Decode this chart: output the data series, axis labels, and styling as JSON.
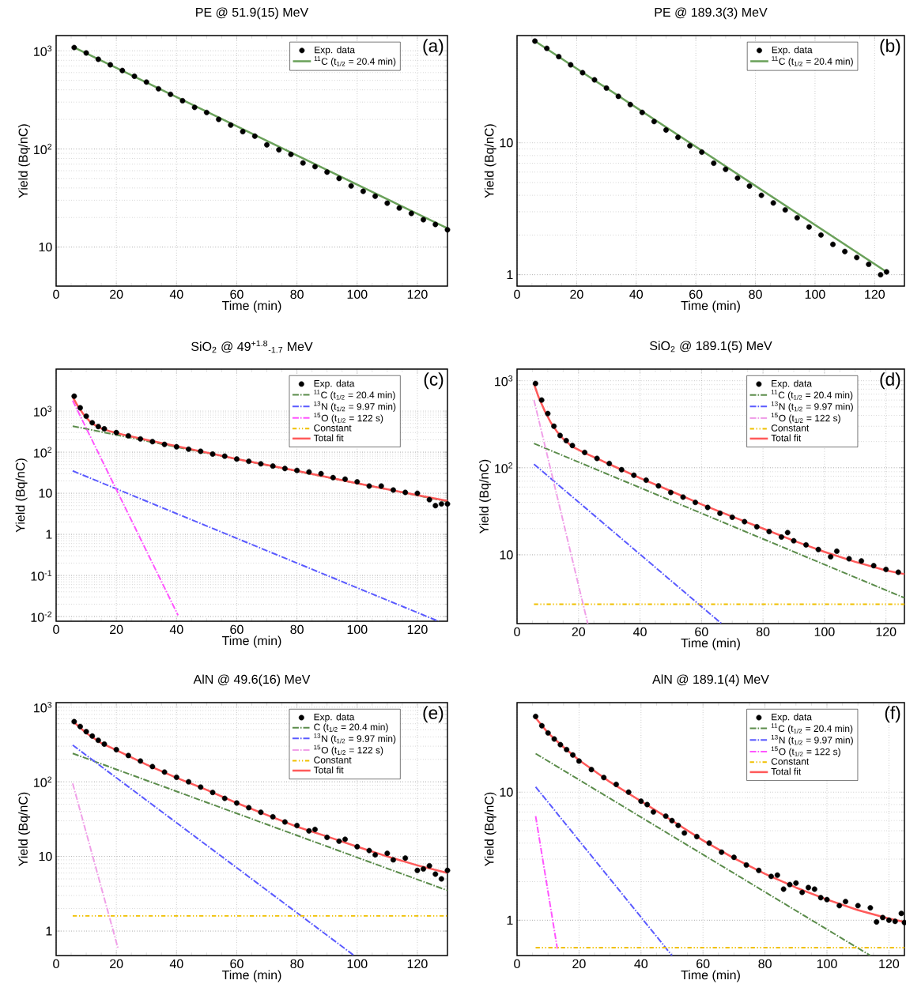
{
  "chart_data": [
    {
      "type": "scatter",
      "title": "PE @ 51.9(15) MeV",
      "xlabel": "Time (min)",
      "ylabel": "Yield (Bq/nC)",
      "xlim": [
        0,
        130
      ],
      "xticks": [
        0,
        20,
        40,
        60,
        80,
        100,
        120
      ],
      "ylim": [
        4,
        1430
      ],
      "yticks": [
        10,
        {
          "value": 100,
          "label": "10$^{2}$"
        },
        {
          "value": 1000,
          "label": "10$^{3}$"
        }
      ],
      "log": "y",
      "grid": true,
      "legend": "top right",
      "annotations": [
        "(a)"
      ],
      "series": [
        {
          "name": "Exp. data",
          "type": "scatter",
          "color": "#000000",
          "x": [
            6,
            10,
            14,
            18,
            22,
            26,
            30,
            34,
            38,
            42,
            46,
            50,
            54,
            58,
            62,
            66,
            70,
            74,
            78,
            82,
            86,
            90,
            94,
            98,
            102,
            106,
            110,
            114,
            118,
            122,
            126,
            130
          ],
          "values": [
            1080,
            950,
            820,
            720,
            630,
            550,
            480,
            410,
            360,
            310,
            265,
            235,
            200,
            175,
            150,
            135,
            110,
            98,
            88,
            72,
            66,
            58,
            50,
            42,
            37,
            33,
            28,
            25,
            22,
            19,
            17,
            15
          ]
        },
        {
          "name": "$^{11}$C (t$_{1/2}$ = 20.4 min)",
          "type": "line",
          "line_style": "solid",
          "color": "#6aa15a",
          "x": [
            5.5,
            130
          ],
          "values": [
            1100,
            15.5
          ]
        }
      ]
    },
    {
      "type": "scatter",
      "title": "PE @ 189.3(3) MeV",
      "xlabel": "Time (min)",
      "ylabel": "Yield (Bq/nC)",
      "xlim": [
        0,
        130
      ],
      "xticks": [
        0,
        20,
        40,
        60,
        80,
        100,
        120
      ],
      "ylim": [
        0.82,
        65
      ],
      "yticks": [
        1,
        10
      ],
      "log": "y",
      "grid": true,
      "legend": "top right",
      "annotations": [
        "(b)"
      ],
      "series": [
        {
          "name": "Exp. data",
          "type": "scatter",
          "color": "#000000",
          "x": [
            6,
            10,
            14,
            18,
            22,
            26,
            30,
            34,
            38,
            42,
            46,
            50,
            54,
            58,
            62,
            66,
            70,
            74,
            78,
            82,
            86,
            90,
            94,
            98,
            102,
            106,
            110,
            114,
            118,
            122,
            124
          ],
          "values": [
            59,
            52,
            45,
            39,
            34,
            30,
            26,
            22.5,
            19.5,
            17,
            14.5,
            12.5,
            11,
            9.5,
            8.5,
            7,
            6.3,
            5.4,
            4.7,
            4.0,
            3.5,
            3.1,
            2.7,
            2.3,
            2.0,
            1.7,
            1.5,
            1.35,
            1.2,
            1.0,
            1.05
          ]
        },
        {
          "name": "$^{11}$C (t$_{1/2}$ = 20.4 min)",
          "type": "line",
          "line_style": "solid",
          "color": "#6aa15a",
          "x": [
            5.5,
            124
          ],
          "values": [
            60,
            1.05
          ]
        }
      ]
    },
    {
      "type": "scatter",
      "title": "SiO$_{2}$ @ 49$^{+1.8}$$_{-1.7}$ MeV",
      "xlabel": "Time (min)",
      "ylabel": "Yield (Bq/nC)",
      "xlim": [
        0,
        130
      ],
      "xticks": [
        0,
        20,
        40,
        60,
        80,
        100,
        120
      ],
      "ylim": [
        0.0077,
        10500
      ],
      "yticks": [
        {
          "value": 0.01,
          "label": "10$^{-2}$"
        },
        {
          "value": 0.1,
          "label": "10$^{-1}$"
        },
        1,
        10,
        {
          "value": 100,
          "label": "10$^{2}$"
        },
        {
          "value": 1000,
          "label": "10$^{3}$"
        }
      ],
      "log": "y",
      "grid": true,
      "legend": "top right",
      "annotations": [
        "(c)"
      ],
      "series": [
        {
          "name": "Exp. data",
          "type": "scatter",
          "color": "#000000",
          "x": [
            6,
            8,
            10,
            12,
            14,
            16,
            20,
            24,
            28,
            32,
            36,
            40,
            44,
            48,
            52,
            56,
            60,
            64,
            68,
            72,
            76,
            80,
            84,
            88,
            92,
            96,
            100,
            104,
            108,
            112,
            116,
            120,
            124,
            126,
            128,
            130
          ],
          "values": [
            2300,
            1200,
            750,
            520,
            420,
            370,
            300,
            250,
            210,
            180,
            155,
            135,
            118,
            105,
            90,
            80,
            68,
            60,
            52,
            46,
            40,
            36,
            33,
            30,
            24,
            22,
            19,
            15,
            15,
            12,
            10.5,
            10,
            7,
            5,
            5.5,
            5.5
          ]
        },
        {
          "name": "$^{11}$C (t$_{1/2}$ = 20.4 min)",
          "type": "line",
          "line_style": "dashed",
          "color": "#5b8c4b",
          "x": [
            5.5,
            130
          ],
          "values": [
            430,
            6.3
          ]
        },
        {
          "name": "$^{13}$N (t$_{1/2}$ = 9.97 min)",
          "type": "line",
          "line_style": "dashed",
          "color": "#5a5aff",
          "x": [
            5.5,
            127
          ],
          "values": [
            35,
            0.0077
          ]
        },
        {
          "name": "$^{15}$O (t$_{1/2}$ = 122 s)",
          "type": "line",
          "line_style": "dashed",
          "color": "#ff55ff",
          "x": [
            5.5,
            40.5
          ],
          "values": [
            1800,
            0.0107
          ]
        },
        {
          "name": "Constant",
          "type": "line",
          "line_style": "dotted",
          "color": "#f0c000"
        },
        {
          "name": "Total fit",
          "type": "line",
          "line_style": "solid",
          "color": "#ff5a5a",
          "x": [
            5.5,
            7,
            9,
            11,
            13,
            15,
            18,
            22,
            30,
            40,
            60,
            80,
            100,
            120,
            130
          ],
          "values": [
            2200,
            1400,
            850,
            580,
            450,
            380,
            320,
            270,
            200,
            140,
            68,
            35,
            17.5,
            9,
            6.5
          ]
        }
      ]
    },
    {
      "type": "scatter",
      "title": "SiO$_{2}$ @ 189.1(5) MeV",
      "xlabel": "Time (min)",
      "ylabel": "Yield (Bq/nC)",
      "xlim": [
        0,
        126
      ],
      "xticks": [
        0,
        20,
        40,
        60,
        80,
        100,
        120
      ],
      "ylim": [
        1.62,
        1360
      ],
      "yticks": [
        10,
        {
          "value": 100,
          "label": "10$^{2}$"
        },
        {
          "value": 1000,
          "label": "10$^{3}$"
        }
      ],
      "log": "y",
      "grid": true,
      "legend": "top right",
      "annotations": [
        "(d)"
      ],
      "series": [
        {
          "name": "Exp. data",
          "type": "scatter",
          "color": "#000000",
          "x": [
            6,
            8,
            10,
            12,
            14,
            16,
            18,
            22,
            26,
            30,
            34,
            38,
            42,
            46,
            50,
            54,
            58,
            62,
            66,
            70,
            74,
            78,
            82,
            86,
            88,
            90,
            94,
            98,
            102,
            104,
            108,
            112,
            116,
            120,
            124
          ],
          "values": [
            930,
            600,
            420,
            300,
            235,
            205,
            180,
            150,
            128,
            112,
            95,
            82,
            72,
            62,
            52,
            46,
            40,
            35,
            30,
            27,
            24,
            21,
            18.5,
            16,
            18,
            14.5,
            13,
            11.5,
            9.5,
            11,
            9,
            8.5,
            7.5,
            6.8,
            6.3
          ]
        },
        {
          "name": "$^{11}$C (t$_{1/2}$ = 20.4 min)",
          "type": "line",
          "line_style": "dashed",
          "color": "#5b8c4b",
          "x": [
            5.5,
            126
          ],
          "values": [
            190,
            3.2
          ]
        },
        {
          "name": "$^{13}$N (t$_{1/2}$ = 9.97 min)",
          "type": "line",
          "line_style": "dashed",
          "color": "#5a5aff",
          "x": [
            5.5,
            66.5
          ],
          "values": [
            110,
            1.62
          ]
        },
        {
          "name": "$^{15}$O (t$_{1/2}$ = 122 s)",
          "type": "line",
          "line_style": "dashed",
          "color": "#f0a0e8",
          "x": [
            5.5,
            23
          ],
          "values": [
            600,
            1.62
          ]
        },
        {
          "name": "Constant",
          "type": "line",
          "line_style": "dotted",
          "color": "#f0c000",
          "x": [
            5.5,
            126
          ],
          "values": [
            2.7,
            2.7
          ]
        },
        {
          "name": "Total fit",
          "type": "line",
          "line_style": "solid",
          "color": "#ff5a5a",
          "x": [
            5.5,
            7,
            9,
            11,
            13,
            15,
            18,
            22,
            30,
            40,
            50,
            60,
            70,
            80,
            90,
            100,
            110,
            120,
            126
          ],
          "values": [
            920,
            650,
            450,
            330,
            260,
            215,
            175,
            148,
            110,
            76,
            54,
            38,
            27.5,
            20,
            14.5,
            10.8,
            8.3,
            6.6,
            6.0
          ]
        }
      ]
    },
    {
      "type": "scatter",
      "title": "AlN @ 49.6(16) MeV",
      "xlabel": "Time (min)",
      "ylabel": "Yield (Bq/nC)",
      "xlim": [
        0,
        130
      ],
      "xticks": [
        0,
        20,
        40,
        60,
        80,
        100,
        120
      ],
      "ylim": [
        0.47,
        1150
      ],
      "yticks": [
        1,
        10,
        {
          "value": 100,
          "label": "10$^{2}$"
        },
        {
          "value": 1000,
          "label": "10$^{3}$"
        }
      ],
      "log": "y",
      "grid": true,
      "legend": "top right",
      "annotations": [
        "(e)"
      ],
      "series": [
        {
          "name": "Exp. data",
          "type": "scatter",
          "color": "#000000",
          "x": [
            6,
            8,
            10,
            12,
            14,
            16,
            20,
            24,
            28,
            32,
            36,
            40,
            44,
            48,
            52,
            56,
            60,
            64,
            68,
            72,
            76,
            80,
            84,
            86,
            90,
            94,
            96,
            100,
            104,
            106,
            110,
            112,
            116,
            120,
            122,
            124,
            126,
            128,
            130
          ],
          "values": [
            640,
            550,
            470,
            410,
            360,
            320,
            270,
            225,
            190,
            160,
            135,
            115,
            100,
            85,
            72,
            60,
            52,
            45,
            39,
            34,
            29,
            26,
            22,
            23,
            18,
            16,
            17,
            13.5,
            12,
            10.5,
            11,
            9,
            9.5,
            6.5,
            6.8,
            7.5,
            5.8,
            5,
            6.5
          ]
        },
        {
          "name": "C (t$_{1/2}$ = 20.4 min)",
          "type": "line",
          "line_style": "dashed",
          "color": "#5b8c4b",
          "x": [
            5.5,
            130
          ],
          "values": [
            240,
            3.5
          ]
        },
        {
          "name": "$^{13}$N (t$_{1/2}$ = 9.97 min)",
          "type": "line",
          "line_style": "dashed",
          "color": "#5a5aff",
          "x": [
            5.5,
            99
          ],
          "values": [
            310,
            0.47
          ]
        },
        {
          "name": "$^{15}$O (t$_{1/2}$ = 122 s)",
          "type": "line",
          "line_style": "dashed",
          "color": "#f0a0e8",
          "x": [
            5.5,
            20.5
          ],
          "values": [
            95,
            0.6
          ]
        },
        {
          "name": "Constant",
          "type": "line",
          "line_style": "dotted",
          "color": "#f0c000",
          "x": [
            5.5,
            130
          ],
          "values": [
            1.6,
            1.6
          ]
        },
        {
          "name": "Total fit",
          "type": "line",
          "line_style": "solid",
          "color": "#ff5a5a",
          "x": [
            5.5,
            10,
            15,
            20,
            30,
            40,
            50,
            60,
            70,
            80,
            90,
            100,
            110,
            120,
            130
          ],
          "values": [
            650,
            450,
            330,
            265,
            170,
            113,
            78,
            52,
            36,
            25,
            18.5,
            13.5,
            10,
            7.6,
            6
          ]
        }
      ]
    },
    {
      "type": "scatter",
      "title": "AlN @ 189.1(4) MeV",
      "xlabel": "Time (min)",
      "ylabel": "Yield (Bq/nC)",
      "xlim": [
        0,
        125
      ],
      "xticks": [
        0,
        20,
        40,
        60,
        80,
        100,
        120
      ],
      "ylim": [
        0.53,
        50
      ],
      "yticks": [
        1,
        10
      ],
      "log": "y",
      "grid": true,
      "legend": "top right",
      "annotations": [
        "(f)"
      ],
      "series": [
        {
          "name": "Exp. data",
          "type": "scatter",
          "color": "#000000",
          "x": [
            6,
            8,
            10,
            12,
            14,
            16,
            18,
            20,
            24,
            28,
            32,
            36,
            40,
            42,
            44,
            48,
            50,
            52,
            54,
            58,
            62,
            66,
            70,
            74,
            78,
            82,
            84,
            86,
            88,
            90,
            92,
            94,
            96,
            98,
            100,
            104,
            106,
            110,
            114,
            116,
            118,
            120,
            122,
            124,
            125
          ],
          "values": [
            39,
            33,
            29,
            26,
            23.5,
            21.5,
            19.5,
            17.5,
            15,
            13,
            11.5,
            10,
            8.5,
            8,
            7,
            6.5,
            6,
            5.5,
            4.8,
            4.5,
            4.0,
            3.4,
            3.1,
            2.7,
            2.45,
            2.2,
            2.25,
            1.75,
            1.9,
            1.95,
            1.65,
            1.8,
            1.75,
            1.5,
            1.45,
            1.3,
            1.4,
            1.3,
            1.25,
            0.97,
            1.05,
            1.0,
            0.98,
            1.13,
            0.96
          ]
        },
        {
          "name": "$^{11}$C (t$_{1/2}$ = 20.4 min)",
          "type": "line",
          "line_style": "dashed",
          "color": "#5b8c4b",
          "x": [
            6,
            114
          ],
          "values": [
            20,
            0.53
          ]
        },
        {
          "name": "$^{13}$N (t$_{1/2}$ = 9.97 min)",
          "type": "line",
          "line_style": "dashed",
          "color": "#5a5aff",
          "x": [
            6,
            50
          ],
          "values": [
            11,
            0.53
          ]
        },
        {
          "name": "$^{15}$O (t$_{1/2}$ = 122 s)",
          "type": "line",
          "line_style": "dashed",
          "color": "#ff55ff",
          "x": [
            6,
            13
          ],
          "values": [
            6.5,
            0.6
          ]
        },
        {
          "name": "Constant",
          "type": "line",
          "line_style": "dotted",
          "color": "#f0c000",
          "x": [
            6,
            125
          ],
          "values": [
            0.61,
            0.61
          ]
        },
        {
          "name": "Total fit",
          "type": "line",
          "line_style": "solid",
          "color": "#ff5a5a",
          "x": [
            6,
            10,
            15,
            20,
            30,
            40,
            50,
            60,
            70,
            80,
            90,
            100,
            110,
            120,
            125
          ],
          "values": [
            38,
            29,
            22.5,
            17.8,
            12,
            8.5,
            6,
            4.2,
            3.05,
            2.3,
            1.8,
            1.45,
            1.2,
            1.03,
            0.97
          ]
        }
      ]
    }
  ]
}
